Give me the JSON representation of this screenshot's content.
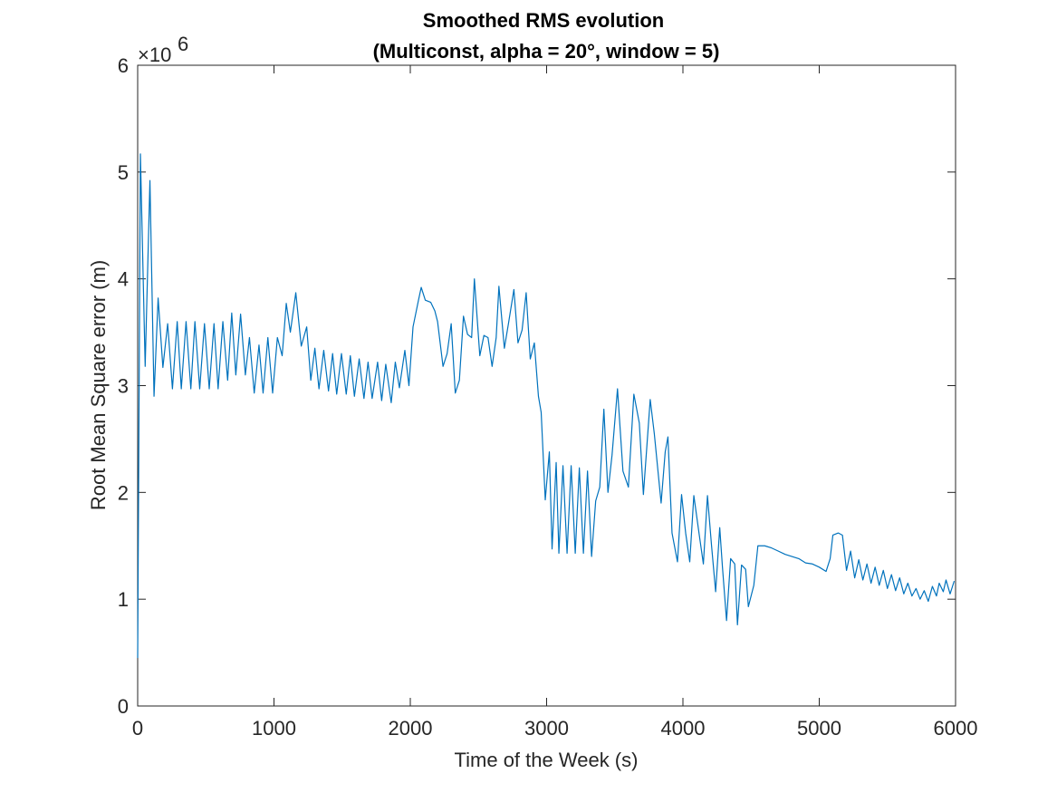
{
  "chart_data": {
    "type": "line",
    "title": [
      "Smoothed RMS evolution",
      "(Multiconst, alpha = 20°, window = 5)"
    ],
    "x_label": "Time of the Week (s)",
    "y_label": "Root Mean Square error (m)",
    "y_multiplier": {
      "base": "×10",
      "exponent": "6"
    },
    "xlim": [
      0,
      6000
    ],
    "xticks": [
      0,
      1000,
      2000,
      3000,
      4000,
      5000,
      6000
    ],
    "ylim": [
      0,
      6
    ],
    "yticks": [
      0,
      1,
      2,
      3,
      4,
      5,
      6
    ],
    "grid": false,
    "series": [
      {
        "color": "#0072bd",
        "x": [
          0,
          20,
          55,
          90,
          120,
          150,
          185,
          220,
          255,
          290,
          320,
          355,
          390,
          420,
          455,
          490,
          525,
          560,
          590,
          625,
          660,
          690,
          720,
          755,
          790,
          820,
          855,
          890,
          920,
          955,
          990,
          1025,
          1060,
          1090,
          1120,
          1160,
          1200,
          1240,
          1270,
          1300,
          1330,
          1365,
          1400,
          1430,
          1460,
          1495,
          1530,
          1560,
          1590,
          1625,
          1660,
          1690,
          1720,
          1760,
          1790,
          1820,
          1860,
          1890,
          1920,
          1960,
          1990,
          2020,
          2060,
          2080,
          2110,
          2150,
          2180,
          2200,
          2240,
          2270,
          2300,
          2330,
          2360,
          2390,
          2420,
          2450,
          2470,
          2510,
          2540,
          2570,
          2600,
          2630,
          2650,
          2690,
          2720,
          2760,
          2790,
          2820,
          2850,
          2880,
          2910,
          2940,
          2960,
          2990,
          3020,
          3040,
          3070,
          3090,
          3120,
          3150,
          3180,
          3210,
          3240,
          3270,
          3300,
          3330,
          3360,
          3390,
          3420,
          3450,
          3480,
          3520,
          3560,
          3600,
          3640,
          3680,
          3710,
          3760,
          3790,
          3840,
          3870,
          3890,
          3920,
          3960,
          3990,
          4020,
          4050,
          4080,
          4120,
          4150,
          4180,
          4210,
          4240,
          4270,
          4290,
          4320,
          4350,
          4380,
          4400,
          4430,
          4460,
          4480,
          4520,
          4550,
          4600,
          4650,
          4700,
          4750,
          4800,
          4850,
          4900,
          4950,
          5000,
          5050,
          5080,
          5100,
          5140,
          5170,
          5200,
          5230,
          5260,
          5290,
          5320,
          5350,
          5380,
          5410,
          5440,
          5470,
          5500,
          5530,
          5560,
          5590,
          5620,
          5650,
          5680,
          5710,
          5740,
          5770,
          5800,
          5830,
          5860,
          5880,
          5910,
          5930,
          5960,
          5990
        ],
        "values": [
          0.45,
          5.17,
          3.18,
          4.92,
          2.9,
          3.82,
          3.17,
          3.58,
          2.97,
          3.6,
          2.97,
          3.6,
          2.97,
          3.6,
          2.97,
          3.58,
          2.97,
          3.58,
          2.97,
          3.6,
          3.05,
          3.68,
          3.1,
          3.67,
          3.1,
          3.45,
          2.93,
          3.38,
          2.93,
          3.45,
          2.93,
          3.45,
          3.28,
          3.77,
          3.5,
          3.87,
          3.37,
          3.55,
          3.05,
          3.35,
          2.97,
          3.33,
          2.95,
          3.3,
          2.92,
          3.3,
          2.92,
          3.28,
          2.9,
          3.25,
          2.88,
          3.22,
          2.88,
          3.22,
          2.86,
          3.2,
          2.84,
          3.22,
          2.98,
          3.33,
          3.0,
          3.55,
          3.8,
          3.92,
          3.8,
          3.78,
          3.7,
          3.6,
          3.18,
          3.3,
          3.58,
          2.93,
          3.05,
          3.65,
          3.48,
          3.45,
          4.0,
          3.28,
          3.47,
          3.45,
          3.18,
          3.45,
          3.93,
          3.35,
          3.58,
          3.9,
          3.4,
          3.52,
          3.87,
          3.25,
          3.4,
          2.9,
          2.75,
          1.93,
          2.38,
          1.47,
          2.28,
          1.43,
          2.25,
          1.43,
          2.25,
          1.43,
          2.23,
          1.43,
          2.2,
          1.4,
          1.92,
          2.05,
          2.78,
          2.0,
          2.35,
          2.97,
          2.2,
          2.05,
          2.92,
          2.65,
          1.98,
          2.87,
          2.55,
          1.9,
          2.38,
          2.52,
          1.62,
          1.35,
          1.98,
          1.62,
          1.35,
          1.97,
          1.6,
          1.33,
          1.97,
          1.5,
          1.07,
          1.67,
          1.3,
          0.8,
          1.38,
          1.33,
          0.76,
          1.32,
          1.28,
          0.93,
          1.13,
          1.5,
          1.5,
          1.48,
          1.45,
          1.42,
          1.4,
          1.38,
          1.34,
          1.33,
          1.3,
          1.26,
          1.38,
          1.6,
          1.62,
          1.6,
          1.27,
          1.45,
          1.2,
          1.37,
          1.18,
          1.33,
          1.15,
          1.3,
          1.13,
          1.27,
          1.1,
          1.23,
          1.08,
          1.2,
          1.05,
          1.15,
          1.03,
          1.1,
          1.0,
          1.08,
          0.98,
          1.12,
          1.03,
          1.15,
          1.07,
          1.18,
          1.05,
          1.17
        ]
      }
    ]
  }
}
